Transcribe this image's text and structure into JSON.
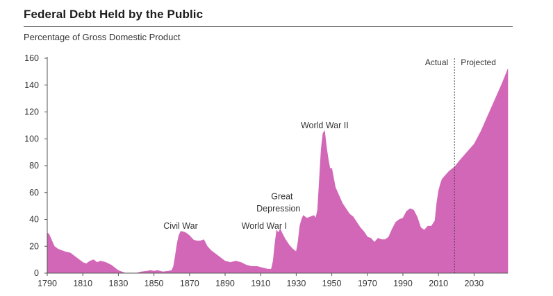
{
  "chart": {
    "title": "Federal Debt Held by the Public",
    "subtitle": "Percentage of Gross Domestic Product"
  },
  "colors": {
    "area": "#d267b8",
    "axis": "#555555",
    "divider": "#444444",
    "text": "#333333"
  },
  "chart_data": {
    "type": "area",
    "title": "Federal Debt Held by the Public",
    "subtitle": "Percentage of Gross Domestic Product",
    "xlabel": "",
    "ylabel": "",
    "xlim": [
      1790,
      2049
    ],
    "ylim": [
      0,
      160
    ],
    "x_ticks": [
      1790,
      1810,
      1830,
      1850,
      1870,
      1890,
      1910,
      1930,
      1950,
      1970,
      1990,
      2010,
      2030
    ],
    "y_ticks": [
      0,
      20,
      40,
      60,
      80,
      100,
      120,
      140,
      160
    ],
    "grid": false,
    "divider": {
      "x": 2019,
      "left_label": "Actual",
      "right_label": "Projected"
    },
    "series": [
      {
        "values": [
          [
            1790,
            30
          ],
          [
            1791,
            29
          ],
          [
            1792,
            26
          ],
          [
            1794,
            20
          ],
          [
            1796,
            18
          ],
          [
            1798,
            17
          ],
          [
            1800,
            16
          ],
          [
            1803,
            15
          ],
          [
            1806,
            12
          ],
          [
            1808,
            10
          ],
          [
            1810,
            8
          ],
          [
            1812,
            7
          ],
          [
            1814,
            9
          ],
          [
            1816,
            10
          ],
          [
            1818,
            8
          ],
          [
            1820,
            9
          ],
          [
            1823,
            8
          ],
          [
            1826,
            6
          ],
          [
            1829,
            3
          ],
          [
            1830,
            2
          ],
          [
            1832,
            1
          ],
          [
            1834,
            0
          ],
          [
            1840,
            0
          ],
          [
            1843,
            1
          ],
          [
            1846,
            1.5
          ],
          [
            1848,
            2
          ],
          [
            1850,
            1.5
          ],
          [
            1852,
            2
          ],
          [
            1855,
            1
          ],
          [
            1858,
            1.5
          ],
          [
            1860,
            2
          ],
          [
            1861,
            5
          ],
          [
            1862,
            13
          ],
          [
            1863,
            22
          ],
          [
            1864,
            28
          ],
          [
            1865,
            31
          ],
          [
            1866,
            31
          ],
          [
            1868,
            30
          ],
          [
            1870,
            28
          ],
          [
            1872,
            25
          ],
          [
            1874,
            24
          ],
          [
            1876,
            24
          ],
          [
            1878,
            25
          ],
          [
            1880,
            20
          ],
          [
            1882,
            17
          ],
          [
            1885,
            14
          ],
          [
            1888,
            11
          ],
          [
            1890,
            9
          ],
          [
            1893,
            8
          ],
          [
            1896,
            9
          ],
          [
            1899,
            8
          ],
          [
            1902,
            6
          ],
          [
            1905,
            5
          ],
          [
            1908,
            5
          ],
          [
            1911,
            4
          ],
          [
            1914,
            3
          ],
          [
            1916,
            3
          ],
          [
            1917,
            9
          ],
          [
            1918,
            22
          ],
          [
            1919,
            32
          ],
          [
            1920,
            30
          ],
          [
            1921,
            33
          ],
          [
            1922,
            30
          ],
          [
            1924,
            25
          ],
          [
            1926,
            21
          ],
          [
            1928,
            18
          ],
          [
            1930,
            16
          ],
          [
            1931,
            23
          ],
          [
            1932,
            35
          ],
          [
            1933,
            40
          ],
          [
            1934,
            43
          ],
          [
            1936,
            41
          ],
          [
            1938,
            42
          ],
          [
            1940,
            43
          ],
          [
            1941,
            41
          ],
          [
            1942,
            47
          ],
          [
            1943,
            70
          ],
          [
            1944,
            92
          ],
          [
            1945,
            104
          ],
          [
            1946,
            106
          ],
          [
            1947,
            94
          ],
          [
            1948,
            85
          ],
          [
            1949,
            78
          ],
          [
            1950,
            78
          ],
          [
            1952,
            64
          ],
          [
            1954,
            58
          ],
          [
            1956,
            52
          ],
          [
            1958,
            48
          ],
          [
            1960,
            44
          ],
          [
            1962,
            42
          ],
          [
            1964,
            38
          ],
          [
            1966,
            34
          ],
          [
            1968,
            31
          ],
          [
            1970,
            27
          ],
          [
            1972,
            26
          ],
          [
            1974,
            23
          ],
          [
            1976,
            26
          ],
          [
            1978,
            25
          ],
          [
            1980,
            25
          ],
          [
            1982,
            27
          ],
          [
            1984,
            33
          ],
          [
            1986,
            38
          ],
          [
            1988,
            40
          ],
          [
            1990,
            41
          ],
          [
            1992,
            46
          ],
          [
            1994,
            48
          ],
          [
            1996,
            47
          ],
          [
            1998,
            42
          ],
          [
            2000,
            34
          ],
          [
            2002,
            32
          ],
          [
            2004,
            35
          ],
          [
            2006,
            35
          ],
          [
            2008,
            39
          ],
          [
            2009,
            52
          ],
          [
            2010,
            61
          ],
          [
            2011,
            66
          ],
          [
            2012,
            70
          ],
          [
            2014,
            73
          ],
          [
            2016,
            76
          ],
          [
            2018,
            78
          ],
          [
            2019,
            79
          ],
          [
            2022,
            84
          ],
          [
            2026,
            90
          ],
          [
            2030,
            96
          ],
          [
            2034,
            106
          ],
          [
            2038,
            118
          ],
          [
            2042,
            130
          ],
          [
            2046,
            142
          ],
          [
            2049,
            152
          ]
        ]
      }
    ],
    "annotations": [
      {
        "text": "Civil War",
        "x": 1865,
        "y": 33
      },
      {
        "text": "World War I",
        "x": 1912,
        "y": 33
      },
      {
        "text": "Great",
        "x": 1922,
        "y": 55
      },
      {
        "text": "Depression",
        "x": 1920,
        "y": 46
      },
      {
        "text": "World War II",
        "x": 1946,
        "y": 108
      }
    ]
  }
}
